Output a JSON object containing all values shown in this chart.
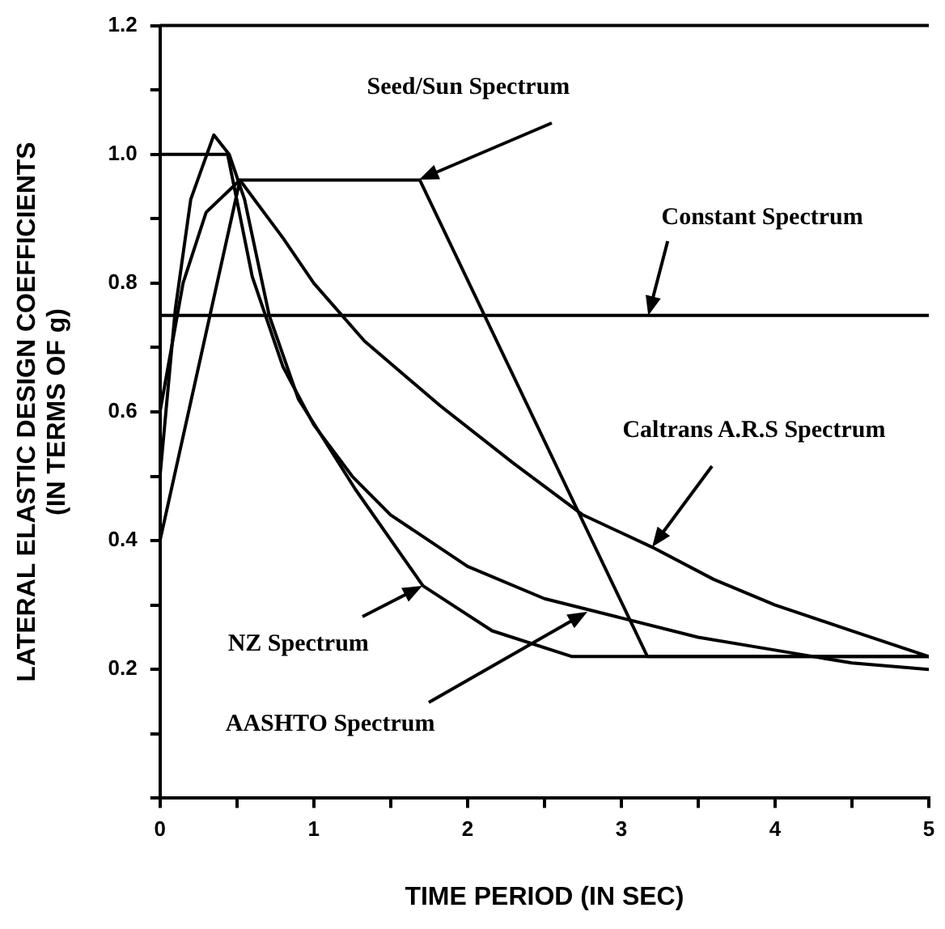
{
  "chart_data": {
    "type": "line",
    "xlabel": "TIME PERIOD (IN SEC)",
    "ylabel": "LATERAL ELASTIC DESIGN COEFFICIENTS\n(IN TERMS OF g)",
    "xlim": [
      0,
      5
    ],
    "ylim": [
      0,
      1.2
    ],
    "xticks": [
      0,
      {
        "value": 0.5,
        "label": null
      },
      1,
      {
        "value": 1.5,
        "label": null
      },
      2,
      {
        "value": 2.5,
        "label": null
      },
      3,
      {
        "value": 3.5,
        "label": null
      },
      4,
      {
        "value": 4.5,
        "label": null
      },
      5
    ],
    "yticks": [
      {
        "value": 0,
        "label": null
      },
      {
        "value": 0.1,
        "label": null
      },
      0.2,
      {
        "value": 0.3,
        "label": null
      },
      0.4,
      {
        "value": 0.5,
        "label": null
      },
      0.6,
      {
        "value": 0.7,
        "label": null
      },
      0.8,
      {
        "value": 0.9,
        "label": null
      },
      {
        "value": 1,
        "label": "1.0"
      },
      {
        "value": 1.1,
        "label": null
      },
      1.2
    ],
    "grid": false,
    "legend": false,
    "marker": "none",
    "line_style": "solid",
    "annotations": [
      {
        "text": "Seed/Sun Spectrum",
        "x": 1.69,
        "y": 0.96
      },
      {
        "text": "Constant Spectrum",
        "x": 3.18,
        "y": 0.75
      },
      {
        "text": "Caltrans A.R.S Spectrum",
        "x": 3.2,
        "y": 0.39
      },
      {
        "text": "NZ Spectrum",
        "x": 1.71,
        "y": 0.33
      },
      {
        "text": "AASHTO Spectrum",
        "x": 2.78,
        "y": 0.29
      }
    ],
    "series": [
      {
        "color": "#000000",
        "x": [
          0,
          0.52,
          1.69,
          3.17,
          5
        ],
        "values": [
          0.4,
          0.96,
          0.96,
          0.22,
          0.22
        ]
      },
      {
        "color": "#000000",
        "x": [
          0,
          5
        ],
        "values": [
          0.75,
          0.75
        ]
      },
      {
        "color": "#000000",
        "x": [
          0,
          0.15,
          0.3,
          0.52,
          0.8,
          1,
          1.33,
          1.82,
          2.3,
          2.75,
          3.2,
          3.6,
          4,
          4.5,
          5
        ],
        "values": [
          0.6,
          0.8,
          0.91,
          0.96,
          0.87,
          0.8,
          0.71,
          0.61,
          0.52,
          0.44,
          0.39,
          0.34,
          0.3,
          0.26,
          0.22
        ]
      },
      {
        "color": "#000000",
        "x": [
          0,
          0.1,
          0.2,
          0.35,
          0.45,
          0.55,
          0.71,
          0.9,
          1.27,
          1.71,
          2.16,
          2.68,
          3.5,
          5
        ],
        "values": [
          0.5,
          0.76,
          0.93,
          1.03,
          1,
          0.93,
          0.75,
          0.62,
          0.48,
          0.33,
          0.26,
          0.22,
          0.22,
          0.22
        ]
      },
      {
        "color": "#000000",
        "x": [
          0,
          0.44,
          0.6,
          0.8,
          1,
          1.25,
          1.5,
          2,
          2.5,
          3,
          3.5,
          4,
          4.5,
          5
        ],
        "values": [
          1,
          1,
          0.81,
          0.67,
          0.58,
          0.5,
          0.44,
          0.36,
          0.31,
          0.28,
          0.25,
          0.23,
          0.21,
          0.2
        ]
      }
    ]
  }
}
